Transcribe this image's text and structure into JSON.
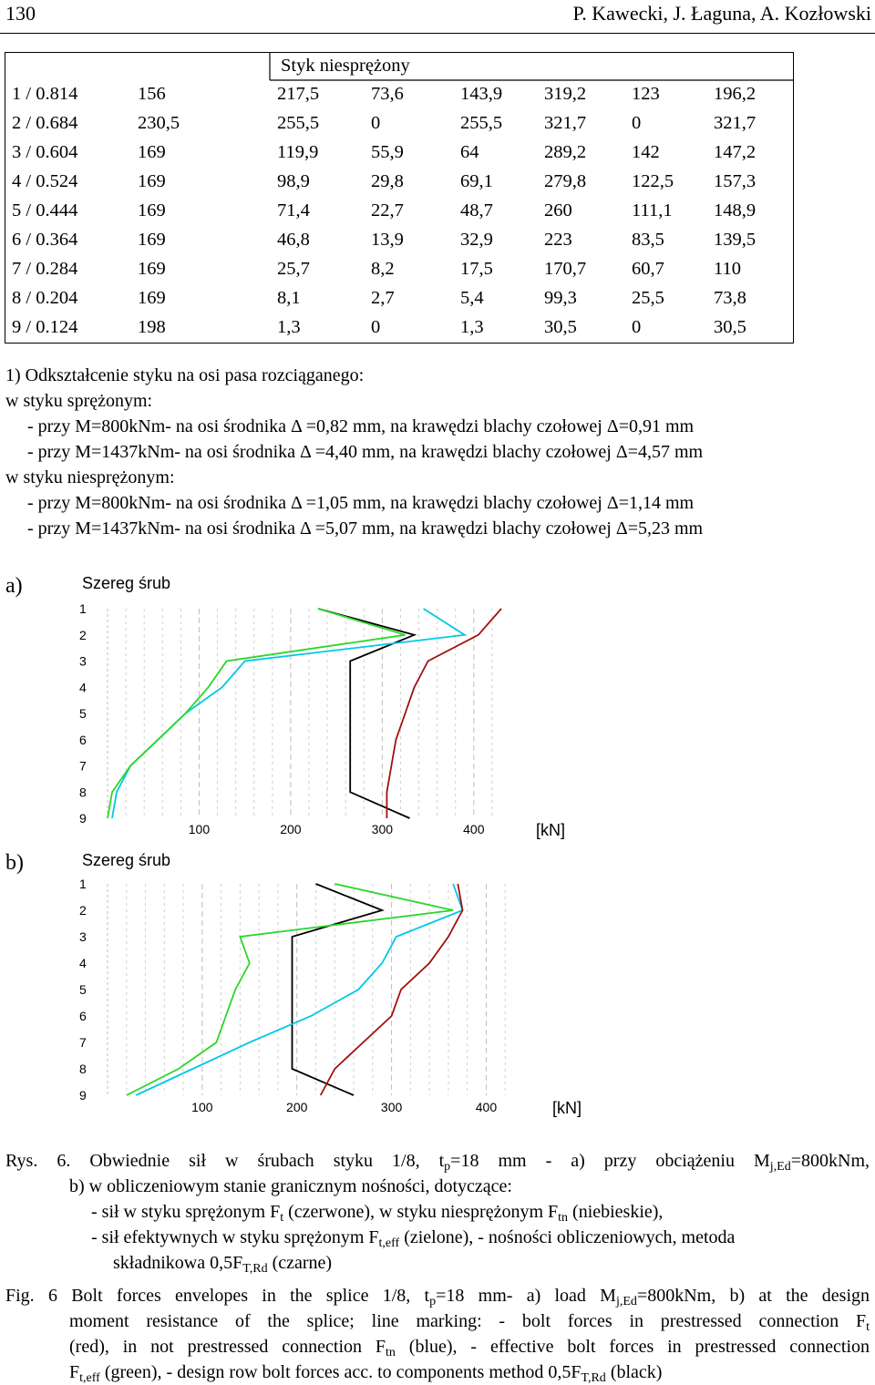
{
  "header": {
    "page_number": "130",
    "authors": "P. Kawecki, J. Łaguna, A. Kozłowski"
  },
  "table": {
    "title": "Styk niesprężony",
    "rows": [
      [
        "1 / 0.814",
        "156",
        "217,5",
        "73,6",
        "143,9",
        "319,2",
        "123",
        "196,2"
      ],
      [
        "2 / 0.684",
        "230,5",
        "255,5",
        "0",
        "255,5",
        "321,7",
        "0",
        "321,7"
      ],
      [
        "3 / 0.604",
        "169",
        "119,9",
        "55,9",
        "64",
        "289,2",
        "142",
        "147,2"
      ],
      [
        "4 / 0.524",
        "169",
        "98,9",
        "29,8",
        "69,1",
        "279,8",
        "122,5",
        "157,3"
      ],
      [
        "5 / 0.444",
        "169",
        "71,4",
        "22,7",
        "48,7",
        "260",
        "111,1",
        "148,9"
      ],
      [
        "6 / 0.364",
        "169",
        "46,8",
        "13,9",
        "32,9",
        "223",
        "83,5",
        "139,5"
      ],
      [
        "7 / 0.284",
        "169",
        "25,7",
        "8,2",
        "17,5",
        "170,7",
        "60,7",
        "110"
      ],
      [
        "8 / 0.204",
        "169",
        "8,1",
        "2,7",
        "5,4",
        "99,3",
        "25,5",
        "73,8"
      ],
      [
        "9 / 0.124",
        "198",
        "1,3",
        "0",
        "1,3",
        "30,5",
        "0",
        "30,5"
      ]
    ]
  },
  "notes": [
    "1) Odkształcenie styku na osi pasa rozciąganego:",
    "w styku sprężonym:",
    "- przy M=800kNm- na osi środnika Δ =0,82 mm, na krawędzi blachy czołowej Δ=0,91 mm",
    "- przy M=1437kNm- na osi środnika Δ =4,40 mm, na krawędzi blachy czołowej Δ=4,57 mm",
    "w styku niesprężonym:",
    "- przy M=800kNm- na osi środnika Δ =1,05 mm, na krawędzi blachy czołowej Δ=1,14 mm",
    "- przy M=1437kNm- na osi środnika Δ =5,07 mm, na krawędzi blachy czołowej Δ=5,23 mm"
  ],
  "chart_data": [
    {
      "type": "line",
      "panel_label": "a)",
      "ylabel": "Szereg śrub",
      "xunit": "[kN]",
      "y_ticks": [
        "1",
        "2",
        "3",
        "4",
        "5",
        "6",
        "7",
        "8",
        "9"
      ],
      "x_ticks": [
        "100",
        "200",
        "300",
        "400"
      ],
      "xlim": [
        0,
        440
      ],
      "ylim": [
        1,
        9
      ],
      "grid": true,
      "series": [
        {
          "color": "#000000",
          "x": [
            230,
            335,
            265,
            265,
            265,
            265,
            265,
            265,
            330
          ]
        },
        {
          "color": "#00c8e6",
          "x": [
            345,
            390,
            150,
            125,
            85,
            55,
            25,
            10,
            5
          ]
        },
        {
          "color": "#2bd62b",
          "x": [
            230,
            325,
            130,
            110,
            85,
            55,
            25,
            5,
            0
          ]
        },
        {
          "color": "#a01010",
          "x": [
            430,
            405,
            350,
            335,
            325,
            315,
            310,
            305,
            305
          ]
        }
      ]
    },
    {
      "type": "line",
      "panel_label": "b)",
      "ylabel": "Szereg śrub",
      "xunit": "[kN]",
      "y_ticks": [
        "1",
        "2",
        "3",
        "4",
        "5",
        "6",
        "7",
        "8",
        "9"
      ],
      "x_ticks": [
        "100",
        "200",
        "300",
        "400"
      ],
      "xlim": [
        0,
        440
      ],
      "ylim": [
        1,
        9
      ],
      "grid": true,
      "series": [
        {
          "color": "#000000",
          "x": [
            220,
            290,
            195,
            195,
            195,
            195,
            195,
            195,
            260
          ]
        },
        {
          "color": "#00c8e6",
          "x": [
            365,
            375,
            305,
            290,
            265,
            215,
            150,
            90,
            30
          ]
        },
        {
          "color": "#2bd62b",
          "x": [
            240,
            365,
            140,
            150,
            135,
            125,
            115,
            75,
            20
          ]
        },
        {
          "color": "#a01010",
          "x": [
            370,
            375,
            360,
            340,
            310,
            300,
            270,
            240,
            225
          ]
        }
      ]
    }
  ],
  "caption_pl": {
    "label": "Rys. 6.",
    "line1_pre": "Obwiednie sił w śrubach styku 1/8, t",
    "line1_sub": "p",
    "line1_mid": "=18 mm - a) przy obciążeniu M",
    "line1_sub2": "j,Ed",
    "line1_post": "=800kNm,",
    "line2": "b) w obliczeniowym stanie granicznym nośności, dotyczące:",
    "line3_pre": "- sił  w styku sprężonym F",
    "line3_sub": "t",
    "line3_mid": " (czerwone), w styku niesprężonym F",
    "line3_sub2": "tn",
    "line3_post": " (niebieskie),",
    "line4_pre": "- sił efektywnych w styku sprężonym F",
    "line4_sub": "t,eff",
    "line4_post": " (zielone), - nośności obliczeniowych, metoda",
    "line5_pre": "składnikowa 0,5F",
    "line5_sub": "T,Rd",
    "line5_post": " (czarne)"
  },
  "caption_en": {
    "label": "Fig. 6",
    "line1_pre": "Bolt forces envelopes in the splice 1/8, t",
    "line1_sub": "p",
    "line1_mid": "=18 mm- a) load M",
    "line1_sub2": "j,Ed",
    "line1_post": "=800kNm, b) at the design",
    "line2_pre": "moment resistance of the splice; line marking:  -  bolt forces in prestressed connection F",
    "line2_sub": "t",
    "line3_pre": "(red), in not prestressed connection F",
    "line3_sub": "tn",
    "line3_post": " (blue), - effective bolt forces in prestressed connection",
    "line4_pre": "F",
    "line4_sub": "t,eff",
    "line4_mid": " (green), - design row bolt forces acc. to components method 0,5F",
    "line4_sub2": "T,Rd",
    "line4_post": " (black)"
  }
}
